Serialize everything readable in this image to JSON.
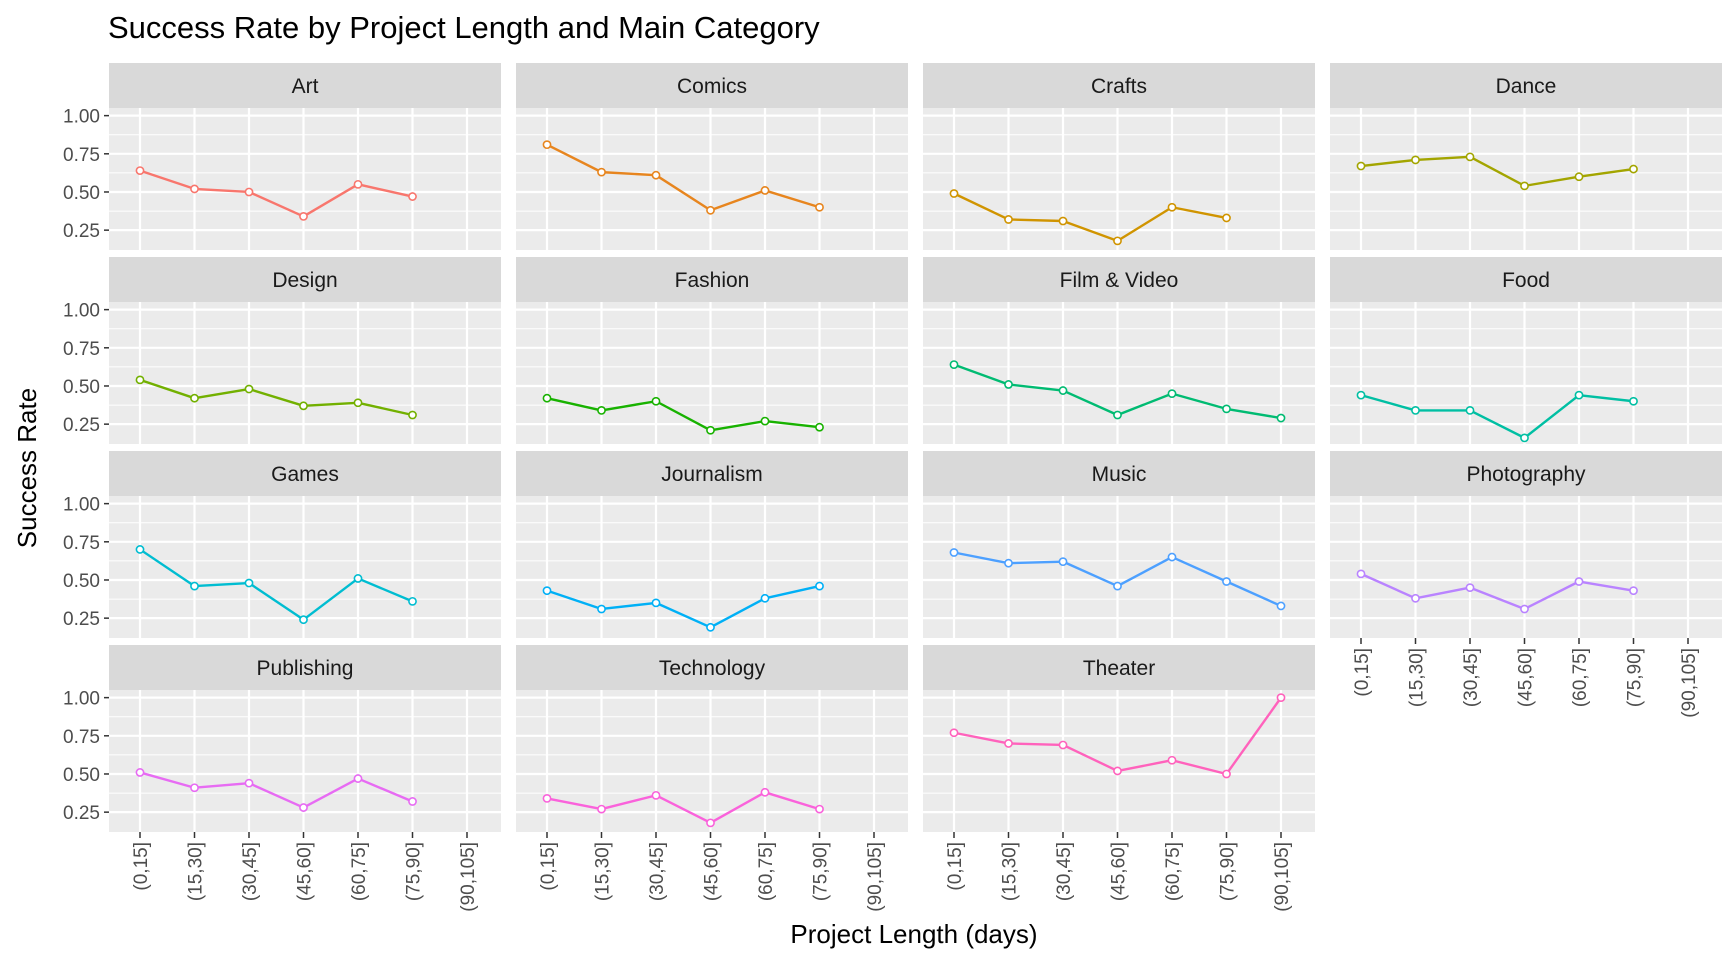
{
  "chart_data": {
    "type": "line",
    "title": "Success Rate by Project Length and Main Category",
    "xlabel": "Project Length (days)",
    "ylabel": "Success Rate",
    "categories": [
      "(0,15]",
      "(15,30]",
      "(30,45]",
      "(45,60]",
      "(60,75]",
      "(75,90]",
      "(90,105]"
    ],
    "y_ticks": [
      "0.25",
      "0.50",
      "0.75",
      "1.00"
    ],
    "ylim": [
      0.12,
      1.05
    ],
    "grid": true,
    "legend": "none",
    "facets": [
      {
        "name": "Art",
        "color": "#F8766D",
        "values": [
          0.64,
          0.52,
          0.5,
          0.34,
          0.55,
          0.47,
          null
        ]
      },
      {
        "name": "Comics",
        "color": "#E7851E",
        "values": [
          0.81,
          0.63,
          0.61,
          0.38,
          0.51,
          0.4,
          null
        ]
      },
      {
        "name": "Crafts",
        "color": "#D09400",
        "values": [
          0.49,
          0.32,
          0.31,
          0.18,
          0.4,
          0.33,
          null
        ]
      },
      {
        "name": "Dance",
        "color": "#A3A500",
        "values": [
          0.67,
          0.71,
          0.73,
          0.54,
          0.6,
          0.65,
          null
        ]
      },
      {
        "name": "Design",
        "color": "#72B000",
        "values": [
          0.54,
          0.42,
          0.48,
          0.37,
          0.39,
          0.31,
          null
        ]
      },
      {
        "name": "Fashion",
        "color": "#18B200",
        "values": [
          0.42,
          0.34,
          0.4,
          0.21,
          0.27,
          0.23,
          null
        ]
      },
      {
        "name": "Film & Video",
        "color": "#00BB72",
        "values": [
          0.64,
          0.51,
          0.47,
          0.31,
          0.45,
          0.35,
          0.29
        ]
      },
      {
        "name": "Food",
        "color": "#00BFA3",
        "values": [
          0.44,
          0.34,
          0.34,
          0.16,
          0.44,
          0.4,
          null
        ]
      },
      {
        "name": "Games",
        "color": "#00BDD1",
        "values": [
          0.7,
          0.46,
          0.48,
          0.24,
          0.51,
          0.36,
          null
        ]
      },
      {
        "name": "Journalism",
        "color": "#00B0F6",
        "values": [
          0.43,
          0.31,
          0.35,
          0.19,
          0.38,
          0.46,
          null
        ]
      },
      {
        "name": "Music",
        "color": "#4DA0FF",
        "values": [
          0.68,
          0.61,
          0.62,
          0.46,
          0.65,
          0.49,
          0.33
        ]
      },
      {
        "name": "Photography",
        "color": "#B983FF",
        "values": [
          0.54,
          0.38,
          0.45,
          0.31,
          0.49,
          0.43,
          null
        ]
      },
      {
        "name": "Publishing",
        "color": "#E76BF3",
        "values": [
          0.51,
          0.41,
          0.44,
          0.28,
          0.47,
          0.32,
          null
        ]
      },
      {
        "name": "Technology",
        "color": "#FA62DB",
        "values": [
          0.34,
          0.27,
          0.36,
          0.18,
          0.38,
          0.27,
          null
        ]
      },
      {
        "name": "Theater",
        "color": "#FF62BC",
        "values": [
          0.77,
          0.7,
          0.69,
          0.52,
          0.59,
          0.5,
          1.0
        ]
      }
    ]
  }
}
